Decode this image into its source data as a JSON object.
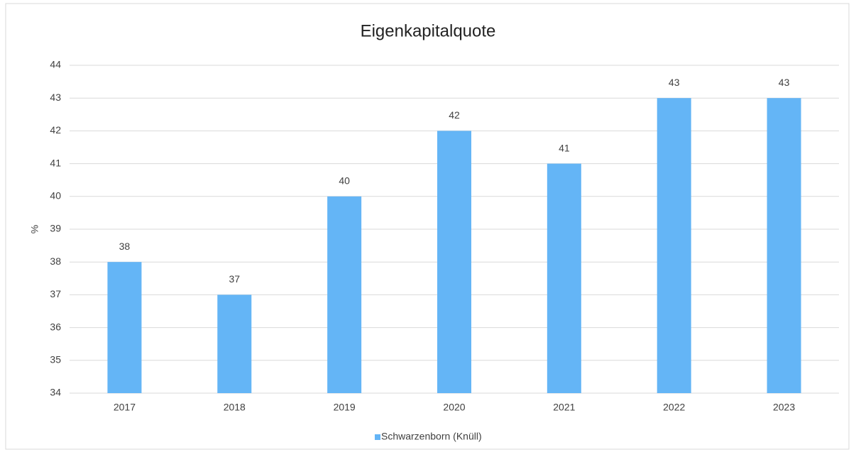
{
  "chart_data": {
    "type": "bar",
    "title": "Eigenkapitalquote",
    "y_label": "%",
    "categories": [
      "2017",
      "2018",
      "2019",
      "2020",
      "2021",
      "2022",
      "2023"
    ],
    "series": [
      {
        "name": "Schwarzenborn (Knüll)",
        "color": "#64b5f6",
        "values": [
          38,
          37,
          40,
          42,
          41,
          43,
          43
        ]
      }
    ],
    "ylim": [
      34,
      44
    ],
    "yticks": [
      34,
      35,
      36,
      37,
      38,
      39,
      40,
      41,
      42,
      43,
      44
    ],
    "grid": true,
    "legend": "bottom",
    "data_labels": true
  }
}
